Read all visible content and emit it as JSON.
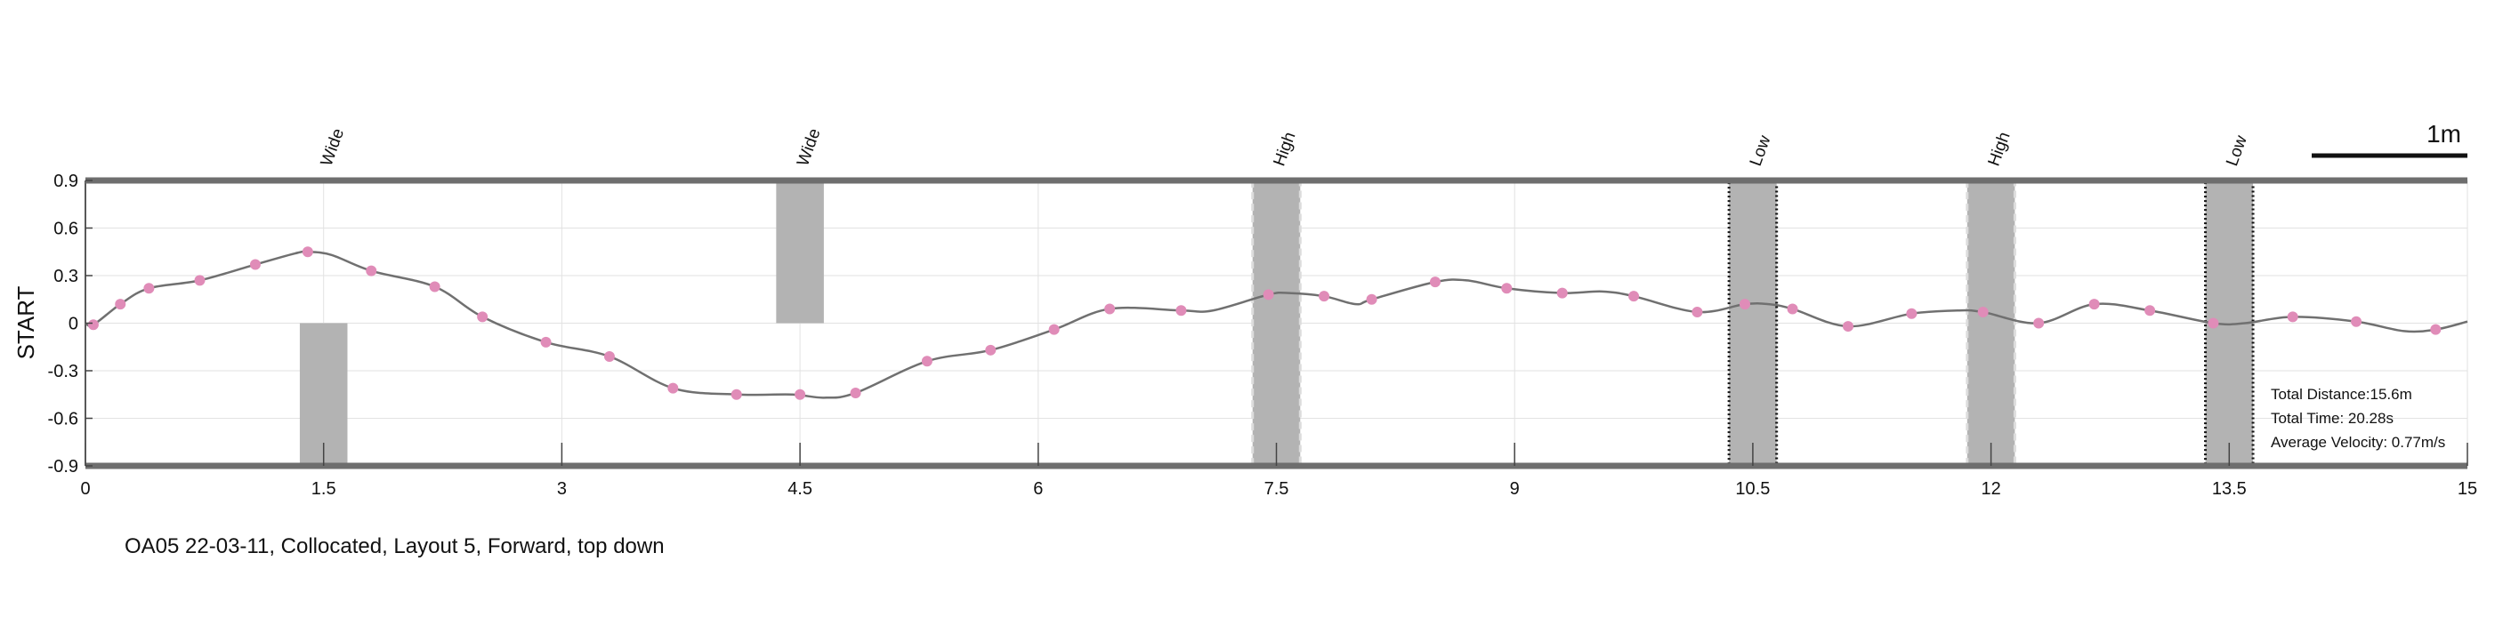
{
  "caption": "OA05 22-03-11, Collocated, Layout 5, Forward, top down",
  "scale_bar": {
    "label": "1m"
  },
  "stats": {
    "distance": "Total Distance:15.6m",
    "time": "Total Time: 20.28s",
    "velocity": "Average Velocity: 0.77m/s"
  },
  "chart_data": {
    "type": "line",
    "ylabel": "START",
    "xlim": [
      0,
      15
    ],
    "ylim": [
      -0.9,
      0.9
    ],
    "xticks": [
      0,
      1.5,
      3,
      4.5,
      6,
      7.5,
      9,
      10.5,
      12,
      13.5,
      15
    ],
    "xtick_labels": [
      "0",
      "1.5",
      "3",
      "4.5",
      "6",
      "7.5",
      "9",
      "10.5",
      "12",
      "13.5",
      "15"
    ],
    "yticks": [
      0.9,
      0.6,
      0.3,
      0,
      -0.3,
      -0.6,
      -0.9
    ],
    "ytick_labels": [
      "0.9",
      "0.6",
      "0.3",
      "0",
      "-0.3",
      "-0.6",
      "-0.9"
    ],
    "grid": true,
    "colors": {
      "path": "#707070",
      "markers": "#e08cb8",
      "obstacle": "#b3b3b3",
      "wall": "#6e6e6e"
    },
    "path": {
      "x": [
        0,
        0.05,
        0.22,
        0.4,
        0.72,
        1.07,
        1.32,
        1.4,
        1.55,
        1.8,
        2.2,
        2.5,
        2.9,
        3.3,
        3.7,
        4.1,
        4.45,
        4.65,
        4.85,
        5.3,
        5.7,
        6.1,
        6.45,
        6.9,
        7.1,
        7.45,
        7.58,
        7.8,
        8.0,
        8.1,
        8.5,
        8.7,
        8.95,
        9.3,
        9.55,
        9.75,
        10.15,
        10.45,
        10.6,
        10.75,
        11.1,
        11.5,
        11.8,
        11.95,
        12.3,
        12.65,
        13.0,
        13.4,
        13.6,
        13.9,
        14.3,
        14.6,
        14.8,
        15.0
      ],
      "y": [
        0,
        -0.01,
        0.12,
        0.22,
        0.27,
        0.37,
        0.44,
        0.45,
        0.43,
        0.33,
        0.23,
        0.04,
        -0.12,
        -0.21,
        -0.41,
        -0.45,
        -0.45,
        -0.47,
        -0.44,
        -0.24,
        -0.17,
        -0.04,
        0.09,
        0.08,
        0.08,
        0.18,
        0.19,
        0.17,
        0.12,
        0.15,
        0.26,
        0.27,
        0.22,
        0.19,
        0.2,
        0.17,
        0.07,
        0.12,
        0.12,
        0.09,
        -0.02,
        0.06,
        0.08,
        0.07,
        0.0,
        0.12,
        0.08,
        0.0,
        0.0,
        0.04,
        0.01,
        -0.05,
        -0.04,
        0.01
      ]
    },
    "markers": {
      "x": [
        0.05,
        0.22,
        0.4,
        0.72,
        1.07,
        1.4,
        1.8,
        2.2,
        2.5,
        2.9,
        3.3,
        3.7,
        4.1,
        4.5,
        4.85,
        5.3,
        5.7,
        6.1,
        6.45,
        6.9,
        7.45,
        7.8,
        8.1,
        8.5,
        8.95,
        9.3,
        9.75,
        10.15,
        10.45,
        10.75,
        11.1,
        11.5,
        11.95,
        12.3,
        12.65,
        13.0,
        13.4,
        13.9,
        14.3,
        14.8
      ],
      "y": [
        -0.01,
        0.12,
        0.22,
        0.27,
        0.37,
        0.45,
        0.33,
        0.23,
        0.04,
        -0.12,
        -0.21,
        -0.41,
        -0.45,
        -0.45,
        -0.44,
        -0.24,
        -0.17,
        -0.04,
        0.09,
        0.08,
        0.18,
        0.17,
        0.15,
        0.26,
        0.22,
        0.19,
        0.17,
        0.07,
        0.12,
        0.09,
        -0.02,
        0.06,
        0.07,
        0.0,
        0.12,
        0.08,
        0.0,
        0.04,
        0.01,
        -0.04
      ]
    },
    "obstacles": [
      {
        "label": "Wide",
        "x0": 1.35,
        "x1": 1.65,
        "y0": -0.9,
        "y1": 0.0,
        "border": "none"
      },
      {
        "label": "Wide",
        "x0": 4.35,
        "x1": 4.65,
        "y0": 0.0,
        "y1": 0.9,
        "border": "none"
      },
      {
        "label": "High",
        "x0": 7.35,
        "x1": 7.65,
        "y0": -0.9,
        "y1": 0.9,
        "border": "dashed"
      },
      {
        "label": "Low",
        "x0": 10.35,
        "x1": 10.65,
        "y0": -0.9,
        "y1": 0.9,
        "border": "dotted"
      },
      {
        "label": "High",
        "x0": 11.85,
        "x1": 12.15,
        "y0": -0.9,
        "y1": 0.9,
        "border": "dashed"
      },
      {
        "label": "Low",
        "x0": 13.35,
        "x1": 13.65,
        "y0": -0.9,
        "y1": 0.9,
        "border": "dotted"
      }
    ]
  }
}
